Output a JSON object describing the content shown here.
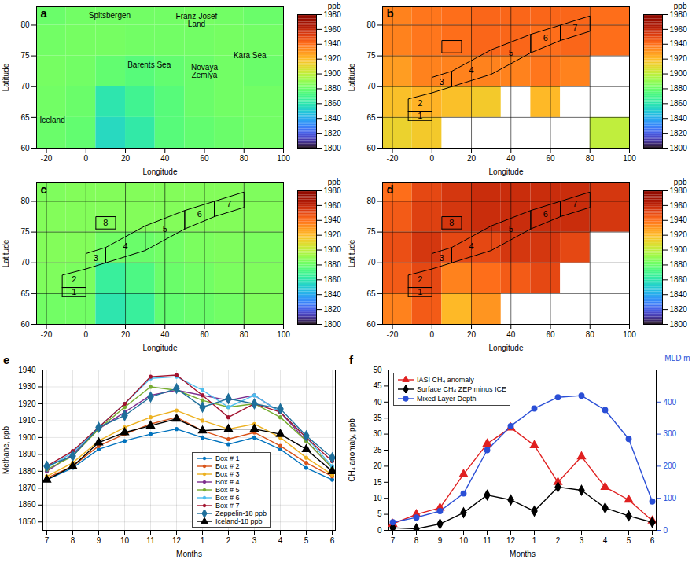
{
  "chart_data": [
    {
      "type": "map",
      "letter": "a",
      "xlabel": "Longitude",
      "ylabel": "Latitude",
      "xlim": [
        -25,
        100
      ],
      "ylim": [
        60,
        83
      ],
      "xticks": [
        -20,
        0,
        20,
        40,
        60,
        80,
        100
      ],
      "yticks": [
        60,
        65,
        70,
        75,
        80
      ],
      "grid": false,
      "lon_edges": [
        -25,
        -10,
        5,
        20,
        35,
        50,
        65,
        80,
        100
      ],
      "lat_edges": [
        60,
        65,
        70,
        75,
        80,
        83
      ],
      "cells": [
        [
          1880,
          1878,
          1855,
          1862,
          1875,
          1878,
          1880,
          1882
        ],
        [
          1882,
          1880,
          1860,
          1868,
          1875,
          1880,
          1882,
          1882
        ],
        [
          1883,
          1882,
          1878,
          1875,
          1878,
          1880,
          1882,
          1880
        ],
        [
          1882,
          1883,
          1883,
          1882,
          1882,
          1882,
          1883,
          1882
        ],
        [
          1880,
          1882,
          1882,
          1882,
          1882,
          1883,
          1882,
          1880
        ]
      ],
      "colorbar": {
        "label": "ppb",
        "range": [
          1800,
          1980
        ],
        "ticks": [
          1800,
          1820,
          1840,
          1860,
          1880,
          1900,
          1920,
          1940,
          1960,
          1980
        ]
      },
      "annotations": [
        {
          "text": "Spitsbergen",
          "lon": 12,
          "lat": 81.5
        },
        {
          "text": "Franz-Josef Land",
          "lon": 56,
          "lat": 80.8
        },
        {
          "text": "Barents Sea",
          "lon": 32,
          "lat": 73.5
        },
        {
          "text": "Novaya Zemlya",
          "lon": 60,
          "lat": 72.5
        },
        {
          "text": "Kara Sea",
          "lon": 83,
          "lat": 75
        },
        {
          "text": "Iceland",
          "lon": -17,
          "lat": 64.5
        }
      ],
      "boxes": []
    },
    {
      "type": "map",
      "letter": "b",
      "xlabel": "Longitude",
      "ylabel": "Latitude",
      "xlim": [
        -25,
        100
      ],
      "ylim": [
        60,
        83
      ],
      "xticks": [
        -20,
        0,
        20,
        40,
        60,
        80,
        100
      ],
      "yticks": [
        60,
        65,
        70,
        75,
        80
      ],
      "grid": true,
      "lon_edges": [
        -25,
        -10,
        5,
        20,
        35,
        50,
        65,
        80,
        100
      ],
      "lat_edges": [
        60,
        65,
        70,
        75,
        80,
        83
      ],
      "cells": [
        [
          1912,
          1915,
          null,
          null,
          null,
          null,
          null,
          1900
        ],
        [
          1918,
          1922,
          1918,
          1915,
          null,
          1920,
          null,
          null
        ],
        [
          1928,
          1935,
          1935,
          1935,
          1935,
          1938,
          1935,
          null
        ],
        [
          1935,
          1938,
          1940,
          1942,
          1942,
          1940,
          1942,
          1940
        ],
        [
          1935,
          1938,
          1940,
          1942,
          1942,
          1942,
          1942,
          1940
        ]
      ],
      "colorbar": {
        "label": "ppb",
        "range": [
          1800,
          1980
        ],
        "ticks": [
          1800,
          1820,
          1840,
          1860,
          1880,
          1900,
          1920,
          1940,
          1960,
          1980
        ]
      },
      "annotations": [],
      "boxes": [
        {
          "label": "1",
          "lon": [
            -12,
            0,
            0,
            -12
          ],
          "lat": [
            64.5,
            64.5,
            66,
            66
          ]
        },
        {
          "label": "2",
          "lon": [
            -12,
            0,
            0,
            -12
          ],
          "lat": [
            66,
            66,
            69,
            68
          ]
        },
        {
          "label": "3",
          "lon": [
            0,
            10,
            10,
            0
          ],
          "lat": [
            69,
            70,
            72.5,
            71.5
          ]
        },
        {
          "label": "4",
          "lon": [
            10,
            30,
            30,
            10
          ],
          "lat": [
            70,
            72,
            76,
            72.5
          ]
        },
        {
          "label": "5",
          "lon": [
            30,
            50,
            50,
            30
          ],
          "lat": [
            72,
            75.5,
            78.5,
            76
          ]
        },
        {
          "label": "6",
          "lon": [
            50,
            65,
            65,
            50
          ],
          "lat": [
            75.5,
            77.5,
            80,
            78.5
          ]
        },
        {
          "label": "7",
          "lon": [
            65,
            80,
            80,
            65
          ],
          "lat": [
            77.5,
            79,
            81.5,
            80
          ]
        },
        {
          "label": null,
          "lon": [
            5,
            15,
            15,
            5
          ],
          "lat": [
            75.5,
            75.5,
            77.5,
            77.5
          ]
        }
      ]
    },
    {
      "type": "map",
      "letter": "c",
      "xlabel": "Longitude",
      "ylabel": "Latitude",
      "xlim": [
        -25,
        100
      ],
      "ylim": [
        60,
        83
      ],
      "xticks": [
        -20,
        0,
        20,
        40,
        60,
        80,
        100
      ],
      "yticks": [
        60,
        65,
        70,
        75,
        80
      ],
      "grid": true,
      "lon_edges": [
        -25,
        -10,
        5,
        20,
        35,
        50,
        65,
        80,
        100
      ],
      "lat_edges": [
        60,
        65,
        70,
        75,
        80,
        83
      ],
      "cells": [
        [
          1882,
          1882,
          1860,
          1865,
          1878,
          1880,
          1882,
          1885
        ],
        [
          1885,
          1884,
          1865,
          1872,
          1880,
          1882,
          1884,
          1885
        ],
        [
          1886,
          1886,
          1882,
          1880,
          1882,
          1884,
          1885,
          1884
        ],
        [
          1886,
          1886,
          1886,
          1886,
          1886,
          1886,
          1886,
          1886
        ],
        [
          1885,
          1886,
          1886,
          1886,
          1886,
          1886,
          1886,
          1885
        ]
      ],
      "colorbar": {
        "label": "ppb",
        "range": [
          1800,
          1980
        ],
        "ticks": [
          1800,
          1820,
          1840,
          1860,
          1880,
          1900,
          1920,
          1940,
          1960,
          1980
        ]
      },
      "annotations": [],
      "boxes": [
        {
          "label": "1",
          "lon": [
            -12,
            0,
            0,
            -12
          ],
          "lat": [
            64.5,
            64.5,
            66,
            66
          ]
        },
        {
          "label": "2",
          "lon": [
            -12,
            0,
            0,
            -12
          ],
          "lat": [
            66,
            66,
            69,
            68
          ]
        },
        {
          "label": "3",
          "lon": [
            0,
            10,
            10,
            0
          ],
          "lat": [
            69,
            70,
            72.5,
            71.5
          ]
        },
        {
          "label": "4",
          "lon": [
            10,
            30,
            30,
            10
          ],
          "lat": [
            70,
            72,
            76,
            72.5
          ]
        },
        {
          "label": "5",
          "lon": [
            30,
            50,
            50,
            30
          ],
          "lat": [
            72,
            75.5,
            78.5,
            76
          ]
        },
        {
          "label": "6",
          "lon": [
            50,
            65,
            65,
            50
          ],
          "lat": [
            75.5,
            77.5,
            80,
            78.5
          ]
        },
        {
          "label": "7",
          "lon": [
            65,
            80,
            80,
            65
          ],
          "lat": [
            77.5,
            79,
            81.5,
            80
          ]
        },
        {
          "label": "8",
          "lon": [
            5,
            15,
            15,
            5
          ],
          "lat": [
            75.5,
            75.5,
            77.5,
            77.5
          ]
        }
      ]
    },
    {
      "type": "map",
      "letter": "d",
      "xlabel": "Longitude",
      "ylabel": "Latitude",
      "xlim": [
        -25,
        100
      ],
      "ylim": [
        60,
        83
      ],
      "xticks": [
        -20,
        0,
        20,
        40,
        60,
        80,
        100
      ],
      "yticks": [
        60,
        65,
        70,
        75,
        80
      ],
      "grid": true,
      "lon_edges": [
        -25,
        -10,
        5,
        20,
        35,
        50,
        65,
        80,
        100
      ],
      "lat_edges": [
        60,
        65,
        70,
        75,
        80,
        83
      ],
      "cells": [
        [
          1935,
          1945,
          1920,
          1930,
          null,
          null,
          null,
          null
        ],
        [
          1945,
          1950,
          1935,
          1940,
          1945,
          1950,
          null,
          null
        ],
        [
          1948,
          1955,
          1950,
          1950,
          1955,
          1955,
          1950,
          null
        ],
        [
          1945,
          1952,
          1955,
          1958,
          1958,
          1958,
          1958,
          1955
        ],
        [
          1940,
          1950,
          1955,
          1958,
          1958,
          1958,
          1958,
          1955
        ]
      ],
      "colorbar": {
        "label": "ppb",
        "range": [
          1800,
          1980
        ],
        "ticks": [
          1800,
          1820,
          1840,
          1860,
          1880,
          1900,
          1920,
          1940,
          1960,
          1980
        ]
      },
      "annotations": [],
      "boxes": [
        {
          "label": "1",
          "lon": [
            -12,
            0,
            0,
            -12
          ],
          "lat": [
            64.5,
            64.5,
            66,
            66
          ]
        },
        {
          "label": "2",
          "lon": [
            -12,
            0,
            0,
            -12
          ],
          "lat": [
            66,
            66,
            69,
            68
          ]
        },
        {
          "label": "3",
          "lon": [
            0,
            10,
            10,
            0
          ],
          "lat": [
            69,
            70,
            72.5,
            71.5
          ]
        },
        {
          "label": "4",
          "lon": [
            10,
            30,
            30,
            10
          ],
          "lat": [
            70,
            72,
            76,
            72.5
          ]
        },
        {
          "label": "5",
          "lon": [
            30,
            50,
            50,
            30
          ],
          "lat": [
            72,
            75.5,
            78.5,
            76
          ]
        },
        {
          "label": "6",
          "lon": [
            50,
            65,
            65,
            50
          ],
          "lat": [
            75.5,
            77.5,
            80,
            78.5
          ]
        },
        {
          "label": "7",
          "lon": [
            65,
            80,
            80,
            65
          ],
          "lat": [
            77.5,
            79,
            81.5,
            80
          ]
        },
        {
          "label": "8",
          "lon": [
            5,
            15,
            15,
            5
          ],
          "lat": [
            75.5,
            75.5,
            77.5,
            77.5
          ]
        }
      ]
    },
    {
      "type": "line",
      "letter": "e",
      "xlabel": "Months",
      "ylabel": "Methane, ppb",
      "categories": [
        "7",
        "8",
        "9",
        "10",
        "11",
        "12",
        "1",
        "2",
        "3",
        "4",
        "5",
        "6"
      ],
      "ylim": [
        1845,
        1940
      ],
      "yticks": [
        1850,
        1860,
        1870,
        1880,
        1890,
        1900,
        1910,
        1920,
        1930,
        1940
      ],
      "grid": true,
      "legend": "lower-right",
      "series": [
        {
          "name": "Box # 1",
          "color": "#0072bd",
          "marker": "dot",
          "values": [
            1875,
            1882,
            1893,
            1898,
            1902,
            1905,
            1900,
            1896,
            1900,
            1893,
            1882,
            1875
          ]
        },
        {
          "name": "Box # 2",
          "color": "#d95319",
          "marker": "dot",
          "values": [
            1876,
            1883,
            1895,
            1902,
            1908,
            1912,
            1904,
            1899,
            1903,
            1895,
            1885,
            1877
          ]
        },
        {
          "name": "Box # 3",
          "color": "#edb120",
          "marker": "dot",
          "values": [
            1877,
            1885,
            1898,
            1906,
            1912,
            1916,
            1910,
            1905,
            1908,
            1900,
            1888,
            1878
          ]
        },
        {
          "name": "Box # 4",
          "color": "#7e2f8e",
          "marker": "dot",
          "values": [
            1880,
            1890,
            1905,
            1915,
            1925,
            1928,
            1925,
            1922,
            1925,
            1915,
            1898,
            1882
          ]
        },
        {
          "name": "Box # 5",
          "color": "#77ac30",
          "marker": "dot",
          "values": [
            1881,
            1889,
            1905,
            1918,
            1930,
            1928,
            1922,
            1918,
            1920,
            1912,
            1898,
            1882
          ]
        },
        {
          "name": "Box # 6",
          "color": "#4dbeee",
          "marker": "dot",
          "values": [
            1882,
            1891,
            1906,
            1920,
            1935,
            1936,
            1928,
            1918,
            1925,
            1915,
            1900,
            1883
          ]
        },
        {
          "name": "Box # 7",
          "color": "#a2142f",
          "marker": "dot",
          "values": [
            1883,
            1892,
            1906,
            1920,
            1936,
            1937,
            1925,
            1912,
            1920,
            1915,
            1900,
            1886
          ]
        },
        {
          "name": "Zeppelin-18 ppb",
          "color": "#1f6f9b",
          "marker": "diamond",
          "values": [
            1883,
            1889,
            1906,
            1913,
            1924,
            1929,
            1918,
            1923,
            1920,
            1917,
            1901,
            1888
          ]
        },
        {
          "name": "Iceland-18 ppb",
          "color": "#000000",
          "marker": "triangle",
          "values": [
            1875,
            1883,
            1897,
            1903,
            1907,
            1911,
            1904,
            1905,
            1905,
            1902,
            1893,
            1880
          ]
        }
      ]
    },
    {
      "type": "line",
      "letter": "f",
      "xlabel": "Months",
      "ylabel": "CH₄ anomaly, ppb",
      "y2label": "MLD m",
      "categories": [
        "7",
        "8",
        "9",
        "10",
        "11",
        "12",
        "1",
        "2",
        "3",
        "4",
        "5",
        "6"
      ],
      "ylim": [
        0,
        50
      ],
      "yticks": [
        0,
        5,
        10,
        15,
        20,
        25,
        30,
        35,
        40,
        45,
        50
      ],
      "y2lim": [
        0,
        500
      ],
      "y2ticks": [
        0,
        100,
        200,
        300,
        400
      ],
      "grid": false,
      "legend": "upper-left",
      "series": [
        {
          "name": "IASI CH₄ anomaly",
          "color": "#e02020",
          "marker": "triangle",
          "values": [
            2,
            5,
            7,
            17.5,
            27,
            32,
            26.5,
            15,
            23,
            13.5,
            9.5,
            3
          ]
        },
        {
          "name": "Surface CH₄ ZEP minus ICE",
          "color": "#000000",
          "marker": "diamond",
          "values": [
            0.8,
            0.5,
            2,
            5.5,
            11,
            9.5,
            6,
            13.5,
            12.5,
            7,
            4.5,
            2.5
          ]
        },
        {
          "name": "Mixed Layer Depth",
          "color": "#2b4fd6",
          "marker": "circle",
          "axis": "y2",
          "values": [
            25,
            40,
            60,
            115,
            250,
            325,
            380,
            415,
            420,
            375,
            285,
            90
          ]
        }
      ]
    }
  ]
}
